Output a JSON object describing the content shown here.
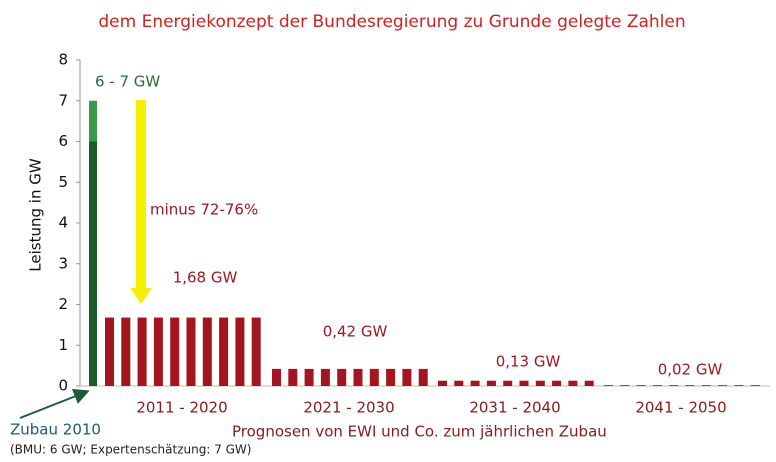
{
  "chart_data": {
    "type": "bar",
    "subtitle": "dem Energiekonzept der Bundesregierung zu Grunde gelegte Zahlen",
    "ylabel": "Leistung in GW",
    "ylim": [
      0,
      8
    ],
    "yticks": [
      0,
      1,
      2,
      3,
      4,
      5,
      6,
      7,
      8
    ],
    "zubau_2010": {
      "label": "Zubau 2010",
      "values": [
        6,
        1
      ],
      "colors": [
        "#1d5a2c",
        "#3a9a4c"
      ],
      "value_label": "6 - 7 GW",
      "note": "(BMU: 6 GW; Expertenschätzung: 7 GW)"
    },
    "arrow_label": "minus 72-76%",
    "footer": "Prognosen von EWI und Co. zum jährlichen Zubau",
    "color": "#a3161f",
    "groups": [
      {
        "label": "2011 - 2020",
        "value_label": "1,68 GW",
        "values": [
          1.68,
          1.68,
          1.68,
          1.68,
          1.68,
          1.68,
          1.68,
          1.68,
          1.68,
          1.68
        ]
      },
      {
        "label": "2021 - 2030",
        "value_label": "0,42 GW",
        "values": [
          0.42,
          0.42,
          0.42,
          0.42,
          0.42,
          0.42,
          0.42,
          0.42,
          0.42,
          0.42
        ]
      },
      {
        "label": "2031 - 2040",
        "value_label": "0,13 GW",
        "values": [
          0.13,
          0.13,
          0.13,
          0.13,
          0.13,
          0.13,
          0.13,
          0.13,
          0.13,
          0.13
        ]
      },
      {
        "label": "2041 - 2050",
        "value_label": "0,02 GW",
        "values": [
          0.02,
          0.02,
          0.02,
          0.02,
          0.02,
          0.02,
          0.02,
          0.02,
          0.02,
          0.02
        ]
      }
    ]
  }
}
